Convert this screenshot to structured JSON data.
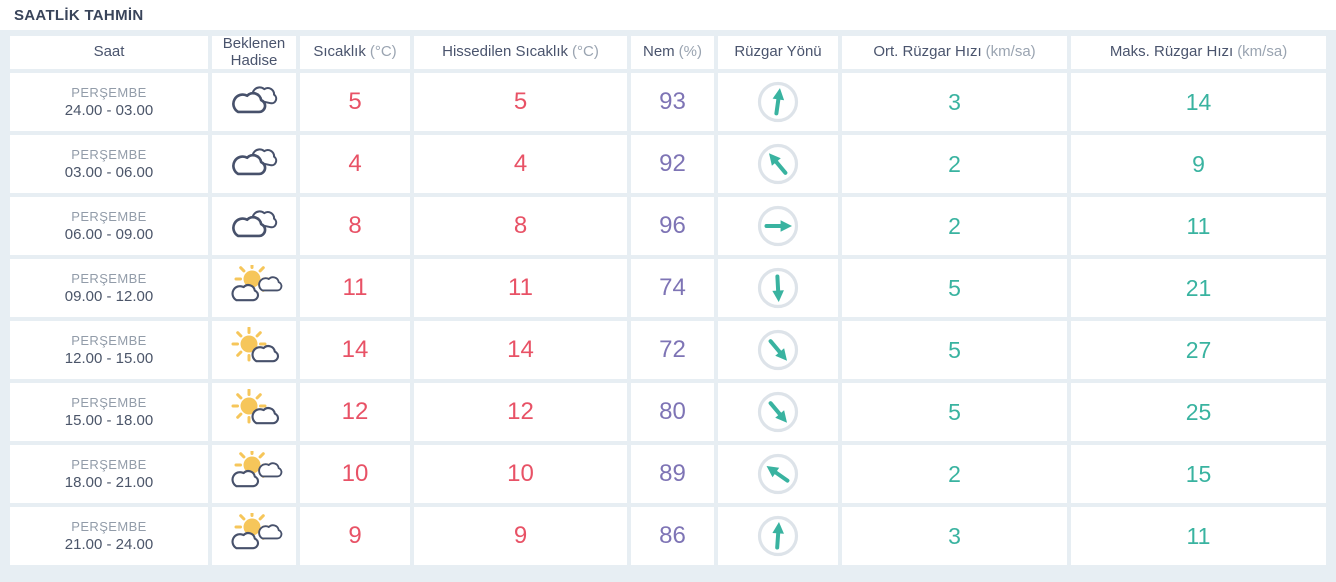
{
  "page": {
    "title": "SAATLİK TAHMİN"
  },
  "colors": {
    "background": "#e7eef3",
    "titlebar_bg": "#ffffff",
    "title_text": "#39445a",
    "header_text": "#4a546d",
    "unit_text": "#9aa4b1",
    "temperature_text": "#e85266",
    "humidity_text": "#7e74b5",
    "wind_text": "#39b3a0",
    "cloud_outline": "#47516b",
    "sun_fill": "#f6c65a",
    "arrow_circle": "#dde3e9"
  },
  "table": {
    "columns": [
      {
        "label": "Saat",
        "unit": ""
      },
      {
        "label": "Beklenen Hadise",
        "unit": ""
      },
      {
        "label": "Sıcaklık",
        "unit": "(°C)"
      },
      {
        "label": "Hissedilen Sıcaklık",
        "unit": "(°C)"
      },
      {
        "label": "Nem",
        "unit": "(%)"
      },
      {
        "label": "Rüzgar Yönü",
        "unit": ""
      },
      {
        "label": "Ort. Rüzgar Hızı",
        "unit": "(km/sa)"
      },
      {
        "label": "Maks. Rüzgar Hızı",
        "unit": "(km/sa)"
      }
    ],
    "rows": [
      {
        "day": "PERŞEMBE",
        "time": "24.00 - 03.00",
        "icon": "cloudy",
        "temp": "5",
        "feels": "5",
        "humidity": "93",
        "wind_dir": "up",
        "wind_rot": 8,
        "avg_wind": "3",
        "max_wind": "14"
      },
      {
        "day": "PERŞEMBE",
        "time": "03.00 - 06.00",
        "icon": "cloudy",
        "temp": "4",
        "feels": "4",
        "humidity": "92",
        "wind_dir": "up-left",
        "wind_rot": -40,
        "avg_wind": "2",
        "max_wind": "9"
      },
      {
        "day": "PERŞEMBE",
        "time": "06.00 - 09.00",
        "icon": "cloudy",
        "temp": "8",
        "feels": "8",
        "humidity": "96",
        "wind_dir": "right",
        "wind_rot": 90,
        "avg_wind": "2",
        "max_wind": "11"
      },
      {
        "day": "PERŞEMBE",
        "time": "09.00 - 12.00",
        "icon": "sun-clouds",
        "temp": "11",
        "feels": "11",
        "humidity": "74",
        "wind_dir": "down",
        "wind_rot": 177,
        "avg_wind": "5",
        "max_wind": "21"
      },
      {
        "day": "PERŞEMBE",
        "time": "12.00 - 15.00",
        "icon": "sun-cloud",
        "temp": "14",
        "feels": "14",
        "humidity": "72",
        "wind_dir": "down-right",
        "wind_rot": 140,
        "avg_wind": "5",
        "max_wind": "27"
      },
      {
        "day": "PERŞEMBE",
        "time": "15.00 - 18.00",
        "icon": "sun-cloud",
        "temp": "12",
        "feels": "12",
        "humidity": "80",
        "wind_dir": "down-right",
        "wind_rot": 140,
        "avg_wind": "5",
        "max_wind": "25"
      },
      {
        "day": "PERŞEMBE",
        "time": "18.00 - 21.00",
        "icon": "sun-clouds",
        "temp": "10",
        "feels": "10",
        "humidity": "89",
        "wind_dir": "up-left",
        "wind_rot": -55,
        "avg_wind": "2",
        "max_wind": "15"
      },
      {
        "day": "PERŞEMBE",
        "time": "21.00 - 24.00",
        "icon": "sun-clouds",
        "temp": "9",
        "feels": "9",
        "humidity": "86",
        "wind_dir": "up",
        "wind_rot": 4,
        "avg_wind": "3",
        "max_wind": "11"
      }
    ]
  }
}
